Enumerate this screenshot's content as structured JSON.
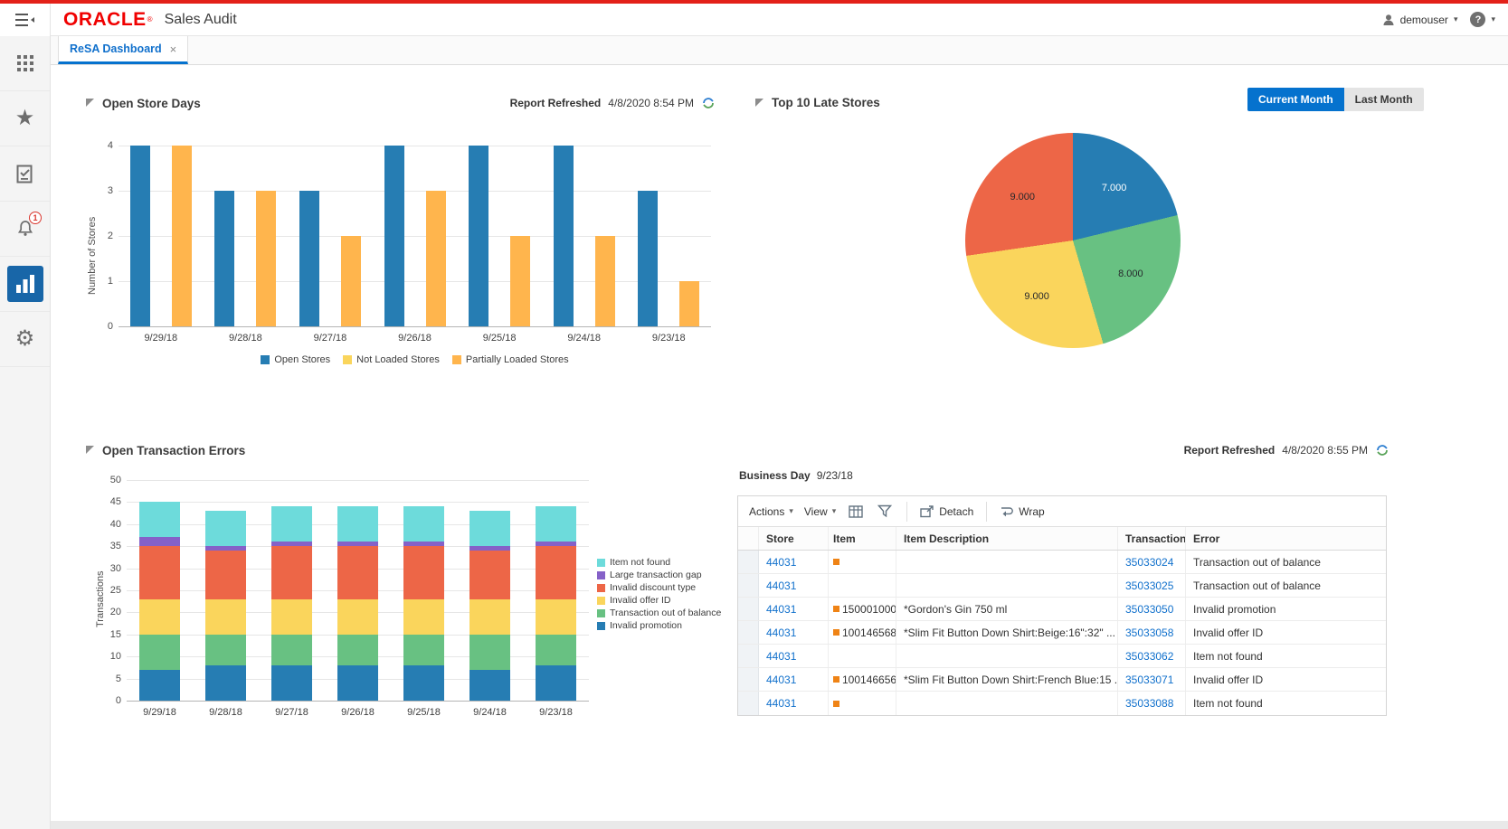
{
  "header": {
    "logo": "ORACLE",
    "logo_registered": "®",
    "app_title": "Sales Audit",
    "user": "demouser"
  },
  "icons": {
    "caret_down": "▾",
    "sort_asc": "▲",
    "star": "★",
    "gear": "⚙",
    "help": "?"
  },
  "sidebar": {
    "notification_count": "1"
  },
  "tabs": [
    {
      "label": "ReSA Dashboard",
      "close": "×"
    }
  ],
  "colors": {
    "brand_red": "#e32119",
    "link_blue": "#1070cc",
    "primary_button_blue": "#0572ce",
    "active_nav_tile_blue": "#1866a8",
    "badge_red": "#d9362e",
    "item_flag_orange": "#ef8315"
  },
  "panels": {
    "open_store_days": {
      "title": "Open Store Days",
      "report_refreshed_label": "Report Refreshed",
      "report_refreshed_value": "4/8/2020 8:54 PM"
    },
    "top_10_late_stores": {
      "title": "Top 10 Late Stores",
      "buttons": {
        "current": "Current Month",
        "last": "Last Month"
      }
    },
    "open_transaction_errors": {
      "title": "Open Transaction Errors",
      "report_refreshed_label": "Report Refreshed",
      "report_refreshed_value": "4/8/2020 8:55 PM"
    },
    "errors_table": {
      "business_day_label": "Business Day",
      "business_day_value": "9/23/18",
      "toolbar": {
        "actions": "Actions",
        "view": "View",
        "detach": "Detach",
        "wrap": "Wrap"
      },
      "columns": [
        "Store",
        "Item",
        "Item Description",
        "Transaction",
        "Error"
      ],
      "sorted_column": "Transaction",
      "sort_direction": "ascending",
      "item_flag_color": "#ef8315",
      "rows": [
        {
          "store": "44031",
          "item_flag": true,
          "item": "",
          "item_description": "",
          "transaction": "35033024",
          "error": "Transaction out of balance"
        },
        {
          "store": "44031",
          "item_flag": false,
          "item": "",
          "item_description": "",
          "transaction": "35033025",
          "error": "Transaction out of balance"
        },
        {
          "store": "44031",
          "item_flag": true,
          "item": "150001000",
          "item_description": "*Gordon's Gin 750 ml",
          "transaction": "35033050",
          "error": "Invalid promotion"
        },
        {
          "store": "44031",
          "item_flag": true,
          "item": "100146568",
          "item_description": "*Slim Fit Button Down Shirt:Beige:16\":32\" ...",
          "transaction": "35033058",
          "error": "Invalid offer ID"
        },
        {
          "store": "44031",
          "item_flag": false,
          "item": "",
          "item_description": "",
          "transaction": "35033062",
          "error": "Item not found"
        },
        {
          "store": "44031",
          "item_flag": true,
          "item": "100146656",
          "item_description": "*Slim Fit Button Down Shirt:French Blue:15 ...",
          "transaction": "35033071",
          "error": "Invalid offer ID"
        },
        {
          "store": "44031",
          "item_flag": true,
          "item": "",
          "item_description": "",
          "transaction": "35033088",
          "error": "Item not found"
        }
      ]
    }
  },
  "chart_data": [
    {
      "type": "bar",
      "title": "Open Store Days",
      "categories": [
        "9/29/18",
        "9/28/18",
        "9/27/18",
        "9/26/18",
        "9/25/18",
        "9/24/18",
        "9/23/18"
      ],
      "series": [
        {
          "name": "Open Stores",
          "color": "#267db3",
          "values": [
            4,
            3,
            3,
            4,
            4,
            4,
            3
          ]
        },
        {
          "name": "Not Loaded Stores",
          "color": "#fad55c",
          "values": [
            0,
            0,
            0,
            0,
            0,
            0,
            0
          ]
        },
        {
          "name": "Partially Loaded Stores",
          "color": "#ffb54d",
          "values": [
            4,
            3,
            2,
            3,
            2,
            2,
            1
          ]
        }
      ],
      "xlabel": "",
      "ylabel": "Number of Stores",
      "ylim": [
        0,
        4
      ],
      "ytick_step": 1,
      "grid": true,
      "legend_position": "bottom"
    },
    {
      "type": "pie",
      "title": "Top 10 Late Stores",
      "slices": [
        {
          "label": "7.000",
          "value": 7,
          "color": "#267db3",
          "label_light": true
        },
        {
          "label": "8.000",
          "value": 8,
          "color": "#68c182"
        },
        {
          "label": "9.000",
          "value": 9,
          "color": "#fad55c"
        },
        {
          "label": "9.000",
          "value": 9,
          "color": "#ed6647"
        }
      ],
      "start_angle_deg": 0,
      "direction": "clockwise"
    },
    {
      "type": "bar",
      "stacked": true,
      "title": "Open Transaction Errors",
      "categories": [
        "9/29/18",
        "9/28/18",
        "9/27/18",
        "9/26/18",
        "9/25/18",
        "9/24/18",
        "9/23/18"
      ],
      "series_bottom_to_top": [
        {
          "name": "Invalid promotion",
          "color": "#267db3",
          "values": [
            7,
            8,
            8,
            8,
            8,
            7,
            8
          ]
        },
        {
          "name": "Transaction out of balance",
          "color": "#68c182",
          "values": [
            8,
            7,
            7,
            7,
            7,
            8,
            7
          ]
        },
        {
          "name": "Invalid offer ID",
          "color": "#fad55c",
          "values": [
            8,
            8,
            8,
            8,
            8,
            8,
            8
          ]
        },
        {
          "name": "Invalid discount type",
          "color": "#ed6647",
          "values": [
            12,
            11,
            12,
            12,
            12,
            11,
            12
          ]
        },
        {
          "name": "Large transaction gap",
          "color": "#8561c8",
          "values": [
            2,
            1,
            1,
            1,
            1,
            1,
            1
          ]
        },
        {
          "name": "Item not found",
          "color": "#6ddbdb",
          "values": [
            8,
            8,
            8,
            8,
            8,
            8,
            8
          ]
        }
      ],
      "legend_order_top_to_bottom": [
        "Item not found",
        "Large transaction gap",
        "Invalid discount type",
        "Invalid offer ID",
        "Transaction out of balance",
        "Invalid promotion"
      ],
      "xlabel": "",
      "ylabel": "Transactions",
      "ylim": [
        0,
        50
      ],
      "ytick_step": 5,
      "grid": true,
      "legend_position": "right"
    }
  ]
}
